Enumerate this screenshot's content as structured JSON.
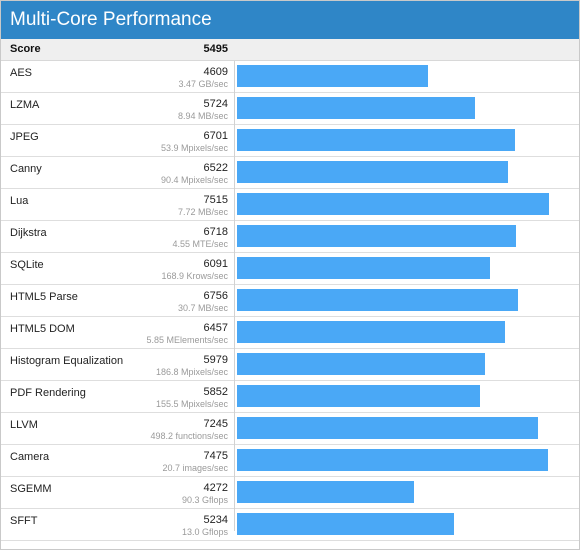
{
  "title": "Multi-Core Performance",
  "score": {
    "label": "Score",
    "value": "5495"
  },
  "colors": {
    "header": "#2f86c7",
    "bar": "#4aa8f6"
  },
  "chart_data": {
    "type": "bar",
    "orientation": "horizontal",
    "xlim": [
      0,
      7750
    ],
    "categories": [
      "AES",
      "LZMA",
      "JPEG",
      "Canny",
      "Lua",
      "Dijkstra",
      "SQLite",
      "HTML5 Parse",
      "HTML5 DOM",
      "Histogram Equalization",
      "PDF Rendering",
      "LLVM",
      "Camera",
      "SGEMM",
      "SFFT"
    ],
    "values": [
      4609,
      5724,
      6701,
      6522,
      7515,
      6718,
      6091,
      6756,
      6457,
      5979,
      5852,
      7245,
      7475,
      4272,
      5234
    ],
    "rates": [
      "3.47 GB/sec",
      "8.94 MB/sec",
      "53.9 Mpixels/sec",
      "90.4 Mpixels/sec",
      "7.72 MB/sec",
      "4.55 MTE/sec",
      "168.9 Krows/sec",
      "30.7 MB/sec",
      "5.85 MElements/sec",
      "186.8 Mpixels/sec",
      "155.5 Mpixels/sec",
      "498.2 functions/sec",
      "20.7 images/sec",
      "90.3 Gflops",
      "13.0 Gflops"
    ]
  }
}
